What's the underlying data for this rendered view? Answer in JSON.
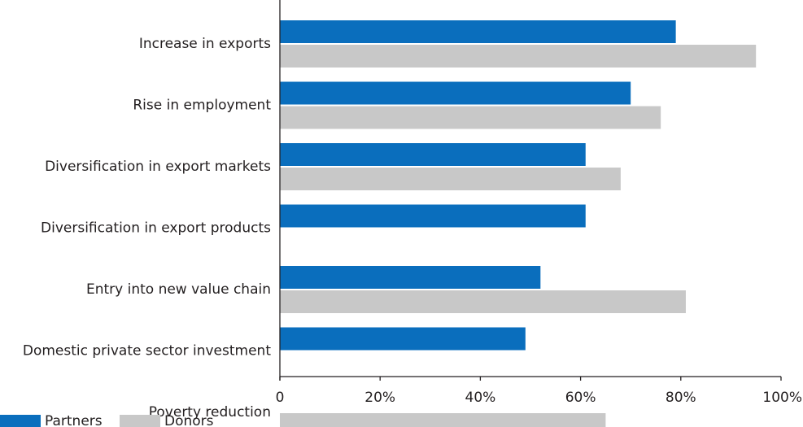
{
  "chart_data": {
    "type": "bar",
    "orientation": "horizontal",
    "categories": [
      "Increase in exports",
      "Rise in employment",
      "Diversification in export markets",
      "Diversification in export products",
      "Entry into new value chain",
      "Domestic private sector investment",
      "Poverty reduction"
    ],
    "series": [
      {
        "name": "Partners",
        "color": "#0a6ebd",
        "values": [
          79,
          70,
          61,
          61,
          52,
          49,
          null
        ]
      },
      {
        "name": "Donors",
        "color": "#c8c8c8",
        "values": [
          95,
          76,
          68,
          null,
          81,
          null,
          65
        ]
      }
    ],
    "xlim": [
      0,
      100
    ],
    "xticks": [
      0,
      20,
      40,
      60,
      80,
      100
    ],
    "xtick_labels": [
      "0",
      "20%",
      "40%",
      "60%",
      "80%",
      "100%"
    ],
    "grid": false,
    "legend_placement": "bottom-left"
  }
}
